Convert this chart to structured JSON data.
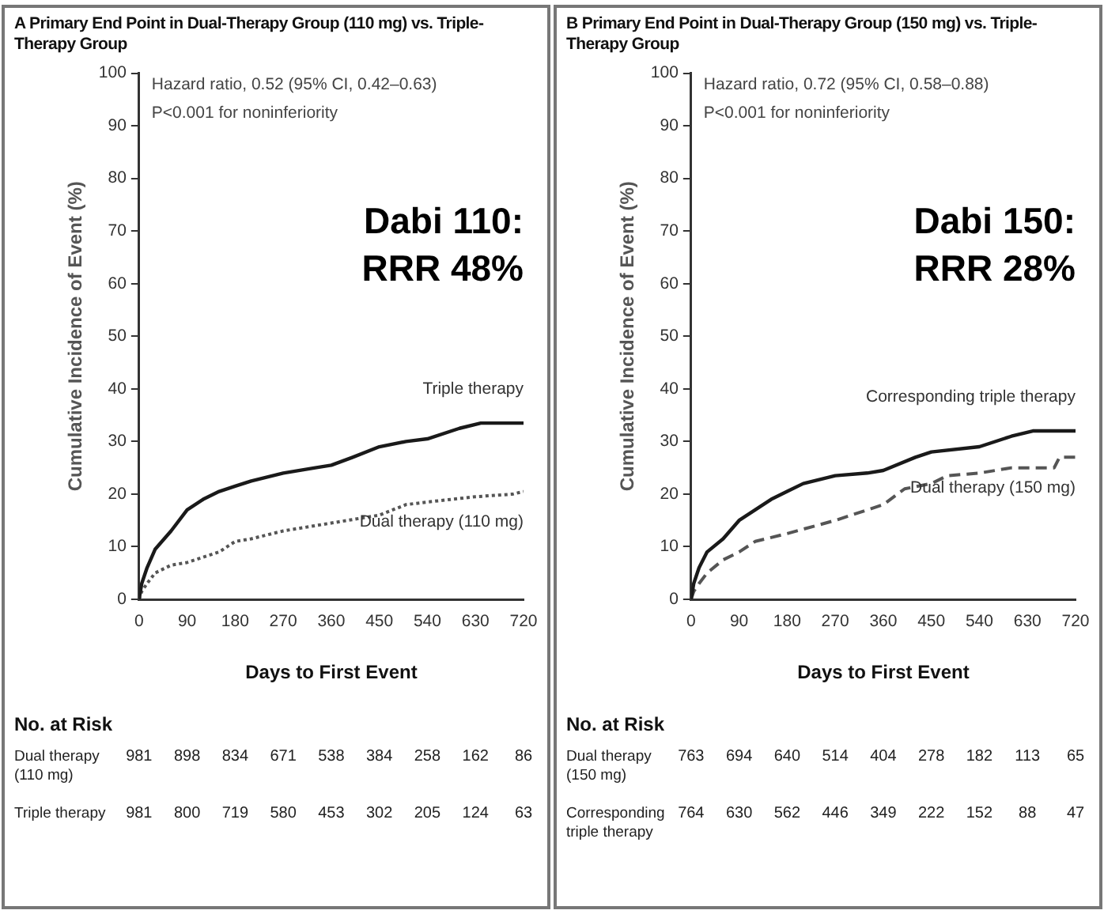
{
  "chart_data": [
    {
      "type": "line",
      "title": "A  Primary End Point in Dual-Therapy Group (110 mg) vs. Triple-Therapy Group",
      "xlabel": "Days to First Event",
      "ylabel": "Cumulative Incidence of Event (%)",
      "xlim": [
        0,
        720
      ],
      "xticks": [
        0,
        90,
        180,
        270,
        360,
        450,
        540,
        630,
        720
      ],
      "ylim": [
        0,
        100
      ],
      "yticks": [
        0,
        10,
        20,
        30,
        40,
        50,
        60,
        70,
        80,
        90,
        100
      ],
      "grid": false,
      "legend": false,
      "marker": "none",
      "series": [
        {
          "name": "Triple therapy",
          "color": "#1a1a1a",
          "line_style": "solid",
          "x": [
            0,
            5,
            15,
            30,
            60,
            90,
            120,
            150,
            180,
            210,
            270,
            330,
            360,
            400,
            450,
            500,
            540,
            600,
            640,
            720
          ],
          "values": [
            0,
            3,
            6,
            9.5,
            13,
            17,
            19,
            20.5,
            21.5,
            22.5,
            24,
            25,
            25.5,
            27,
            29,
            30,
            30.5,
            32.5,
            33.5,
            33.5
          ]
        },
        {
          "name": "Dual therapy (110 mg)",
          "color": "#555555",
          "line_style": "dotted",
          "x": [
            0,
            5,
            15,
            30,
            60,
            90,
            120,
            150,
            180,
            210,
            270,
            360,
            450,
            500,
            540,
            630,
            700,
            720
          ],
          "values": [
            0,
            1.5,
            3,
            5,
            6.5,
            7,
            8,
            9,
            11,
            11.5,
            13,
            14.5,
            16,
            18,
            18.5,
            19.5,
            20,
            20.5
          ]
        }
      ],
      "annotations": [
        "Hazard ratio, 0.52 (95% CI, 0.42–0.63)",
        "P<0.001 for noninferiority",
        "Dabi 110: RRR 48%",
        "No. at Risk",
        "Dual therapy (110 mg)",
        "981",
        "898",
        "834",
        "671",
        "538",
        "384",
        "258",
        "162",
        "86",
        "Triple therapy",
        "981",
        "800",
        "719",
        "580",
        "453",
        "302",
        "205",
        "124",
        "63"
      ]
    },
    {
      "type": "line",
      "title": "B  Primary End Point in Dual-Therapy Group (150 mg) vs. Triple-Therapy Group",
      "xlabel": "Days to First Event",
      "ylabel": "Cumulative Incidence of Event (%)",
      "xlim": [
        0,
        720
      ],
      "xticks": [
        0,
        90,
        180,
        270,
        360,
        450,
        540,
        630,
        720
      ],
      "ylim": [
        0,
        100
      ],
      "yticks": [
        0,
        10,
        20,
        30,
        40,
        50,
        60,
        70,
        80,
        90,
        100
      ],
      "grid": false,
      "legend": false,
      "marker": "none",
      "series": [
        {
          "name": "Corresponding triple therapy",
          "color": "#1a1a1a",
          "line_style": "solid",
          "x": [
            0,
            5,
            15,
            30,
            60,
            90,
            120,
            150,
            180,
            210,
            270,
            330,
            360,
            420,
            450,
            540,
            600,
            640,
            720
          ],
          "values": [
            0,
            3,
            6,
            9,
            11.5,
            15,
            17,
            19,
            20.5,
            22,
            23.5,
            24,
            24.5,
            27,
            28,
            29,
            31,
            32,
            32
          ]
        },
        {
          "name": "Dual therapy (150 mg)",
          "color": "#555555",
          "line_style": "dashed",
          "x": [
            0,
            5,
            15,
            30,
            60,
            90,
            120,
            180,
            270,
            330,
            360,
            400,
            450,
            480,
            540,
            600,
            680,
            690,
            720
          ],
          "values": [
            0,
            1.5,
            3,
            5,
            7.5,
            9,
            11,
            12.5,
            15,
            17,
            18,
            21,
            22,
            23.5,
            24,
            25,
            25,
            27,
            27
          ]
        }
      ],
      "annotations": [
        "Hazard ratio, 0.72 (95% CI, 0.58–0.88)",
        "P<0.001 for noninferiority",
        "Dabi 150: RRR 28%",
        "No. at Risk",
        "Dual therapy (150 mg)",
        "763",
        "694",
        "640",
        "514",
        "404",
        "278",
        "182",
        "113",
        "65",
        "Corresponding triple therapy",
        "764",
        "630",
        "562",
        "446",
        "349",
        "222",
        "152",
        "88",
        "47"
      ]
    }
  ]
}
